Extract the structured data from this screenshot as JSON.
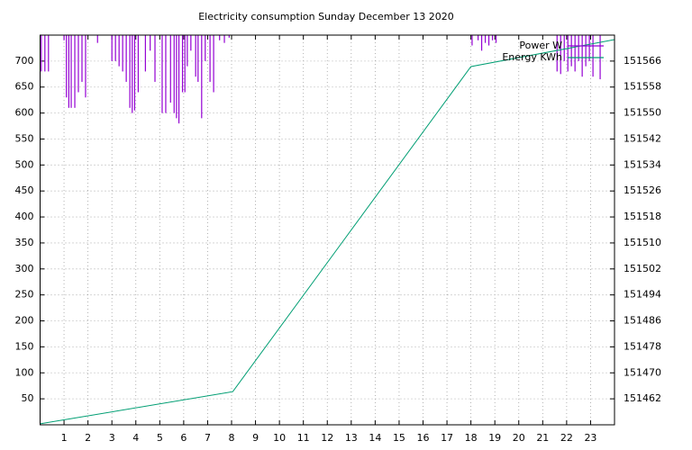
{
  "chart_data": {
    "type": "line",
    "title": "Electricity consumption Sunday December 13 2020",
    "xlim": [
      0,
      24
    ],
    "xticks": [
      1,
      2,
      3,
      4,
      5,
      6,
      7,
      8,
      9,
      10,
      11,
      12,
      13,
      14,
      15,
      16,
      17,
      18,
      19,
      20,
      21,
      22,
      23
    ],
    "ylim": [
      0,
      750
    ],
    "yticks": [
      50,
      100,
      150,
      200,
      250,
      300,
      350,
      400,
      450,
      500,
      550,
      600,
      650,
      700
    ],
    "y2lim": [
      151454,
      151574
    ],
    "y2ticks": [
      151462,
      151470,
      151478,
      151486,
      151494,
      151502,
      151510,
      151518,
      151526,
      151534,
      151542,
      151550,
      151558,
      151566
    ],
    "grid": true,
    "legend": "top-right",
    "series": [
      {
        "name": "Power W",
        "color": "#9400d3",
        "style": "impulses",
        "x": [
          0.05,
          0.2,
          0.35,
          1.0,
          1.1,
          1.2,
          1.3,
          1.45,
          1.6,
          1.75,
          1.9,
          2.4,
          3.0,
          3.15,
          3.3,
          3.45,
          3.6,
          3.75,
          3.85,
          3.95,
          4.1,
          4.4,
          4.6,
          4.8,
          5.1,
          5.25,
          5.45,
          5.6,
          5.7,
          5.8,
          5.95,
          6.05,
          6.15,
          6.3,
          6.5,
          6.6,
          6.75,
          6.9,
          7.1,
          7.25,
          7.5,
          7.7,
          7.9,
          18.05,
          18.3,
          18.45,
          18.6,
          18.75,
          18.9,
          19.05,
          21.6,
          21.75,
          21.9,
          22.05,
          22.2,
          22.35,
          22.5,
          22.65,
          22.8,
          22.95,
          23.1,
          23.4
        ],
        "values": [
          680,
          680,
          680,
          740,
          630,
          610,
          610,
          610,
          640,
          660,
          630,
          735,
          700,
          700,
          690,
          680,
          660,
          610,
          600,
          605,
          640,
          680,
          720,
          660,
          600,
          600,
          620,
          600,
          590,
          580,
          640,
          640,
          690,
          720,
          670,
          660,
          590,
          700,
          660,
          640,
          740,
          735,
          745,
          730,
          740,
          720,
          735,
          730,
          740,
          735,
          680,
          675,
          700,
          680,
          690,
          680,
          700,
          670,
          690,
          700,
          670,
          665
        ]
      },
      {
        "name": "Energy KWh",
        "color": "#009e73",
        "style": "lines",
        "axis": "y2",
        "x": [
          0,
          8.05,
          18,
          24
        ],
        "values": [
          151454.3,
          151464.2,
          151564.3,
          151572.6
        ]
      }
    ]
  }
}
